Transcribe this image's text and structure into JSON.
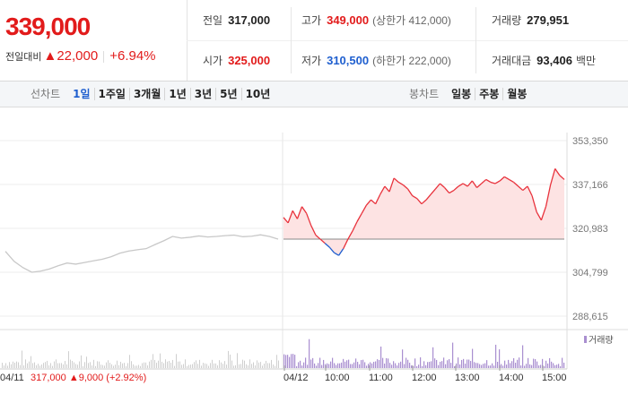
{
  "summary": {
    "price": "339,000",
    "change_label": "전일대비",
    "change_value": "▲22,000",
    "change_pct": "+6.94%"
  },
  "info": {
    "prev_close": {
      "label": "전일",
      "value": "317,000"
    },
    "open": {
      "label": "시가",
      "value": "325,000"
    },
    "high": {
      "label": "고가",
      "value": "349,000",
      "sub": "(상한가 412,000)"
    },
    "low": {
      "label": "저가",
      "value": "310,500",
      "sub": "(하한가 222,000)"
    },
    "volume": {
      "label": "거래량",
      "value": "279,951"
    },
    "amount": {
      "label": "거래대금",
      "value": "93,406",
      "unit": "백만"
    }
  },
  "toolbar": {
    "line_title": "선차트",
    "line_items": [
      "1일",
      "1주일",
      "3개월",
      "1년",
      "3년",
      "5년",
      "10년"
    ],
    "line_selected": 0,
    "candle_title": "봉차트",
    "candle_items": [
      "일봉",
      "주봉",
      "월봉"
    ]
  },
  "chart_data": {
    "type": "line",
    "y_ticks": [
      "353,350",
      "337,166",
      "320,983",
      "304,799",
      "288,615"
    ],
    "ylim": [
      288615,
      353350
    ],
    "baseline": 317000,
    "prev_day_label": "04/11",
    "prev_day_text": "317,000",
    "prev_day_change": "▲9,000",
    "prev_day_pct": "(+2.92%)",
    "x_ticks": [
      "04/12",
      "10:00",
      "11:00",
      "12:00",
      "13:00",
      "14:00",
      "15:00"
    ],
    "volume_legend": "거래량",
    "colors": {
      "up": "#e8323c",
      "down": "#1f5fcf",
      "prev": "#c8c8c8",
      "fill": "#fde3e3"
    },
    "prev_day_series": [
      312500,
      308800,
      306500,
      304800,
      305200,
      306000,
      307200,
      308200,
      307800,
      308400,
      309000,
      309600,
      310500,
      311800,
      312600,
      313100,
      313500,
      315000,
      316400,
      318000,
      317400,
      317700,
      318200,
      317800,
      318000,
      318300,
      318500,
      317900,
      318100,
      318600,
      318000,
      317000
    ],
    "today_series": [
      325000,
      323000,
      327500,
      324500,
      329000,
      326500,
      322000,
      318500,
      317000,
      315500,
      314000,
      312000,
      311000,
      313500,
      317000,
      320000,
      323500,
      326500,
      329500,
      331500,
      330000,
      333500,
      336500,
      334500,
      339500,
      338000,
      337000,
      335500,
      333000,
      332000,
      330000,
      331500,
      333500,
      335500,
      337500,
      336000,
      334000,
      335000,
      336500,
      337500,
      336500,
      338500,
      336000,
      337500,
      339000,
      338000,
      337500,
      338500,
      340000,
      339000,
      338000,
      336500,
      335000,
      336500,
      333000,
      327000,
      324000,
      329000,
      337000,
      343000,
      340500,
      339000
    ]
  }
}
